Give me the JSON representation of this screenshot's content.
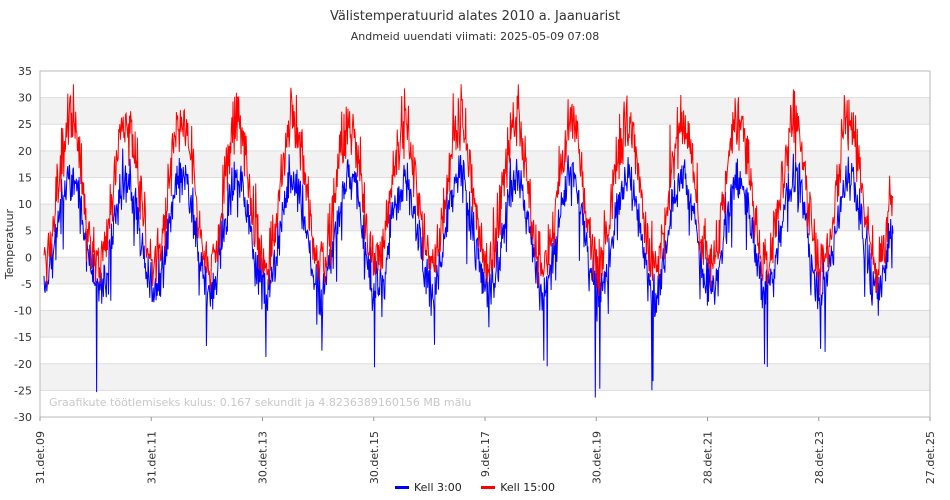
{
  "chart_data": {
    "type": "line",
    "title": "Välistemperatuurid alates 2010 a. Jaanuarist",
    "subtitle": "Andmeid uuendati viimati: 2025-05-09 07:08",
    "ylabel": "Temperatuur",
    "xlabel": "",
    "ylim": [
      -30,
      35
    ],
    "yticks": [
      35,
      30,
      25,
      20,
      15,
      10,
      5,
      0,
      -5,
      -10,
      -15,
      -20,
      -25,
      -30
    ],
    "x_tick_labels": [
      "31.det.09",
      "31.det.11",
      "30.det.13",
      "30.det.15",
      "9.det.17",
      "30.det.19",
      "28.det.21",
      "28.det.23",
      "27.det.25"
    ],
    "grid": "horizontal, alternating bands",
    "legend_position": "bottom-center",
    "note": "Graafikute töötlemiseks kulus: 0.167 sekundit ja 4.8236389160156 MB mälu",
    "series": [
      {
        "name": "Kell 3:00",
        "color": "#0000ff",
        "approx_yearly_pattern": {
          "summer_peak_range": [
            14,
            18
          ],
          "winter_trough_range": [
            -10,
            -2
          ],
          "extreme_lows": [
            -22,
            -27,
            -26,
            -18,
            -22,
            -19,
            -21,
            -19,
            -23
          ]
        }
      },
      {
        "name": "Kell 15:00",
        "color": "#ff0000",
        "approx_yearly_pattern": {
          "summer_peak_range": [
            22,
            28
          ],
          "winter_trough_range": [
            -6,
            0
          ],
          "extreme_highs": [
            32,
            30,
            30,
            31,
            31,
            29,
            32,
            32,
            32,
            31,
            29,
            29
          ]
        }
      }
    ]
  }
}
